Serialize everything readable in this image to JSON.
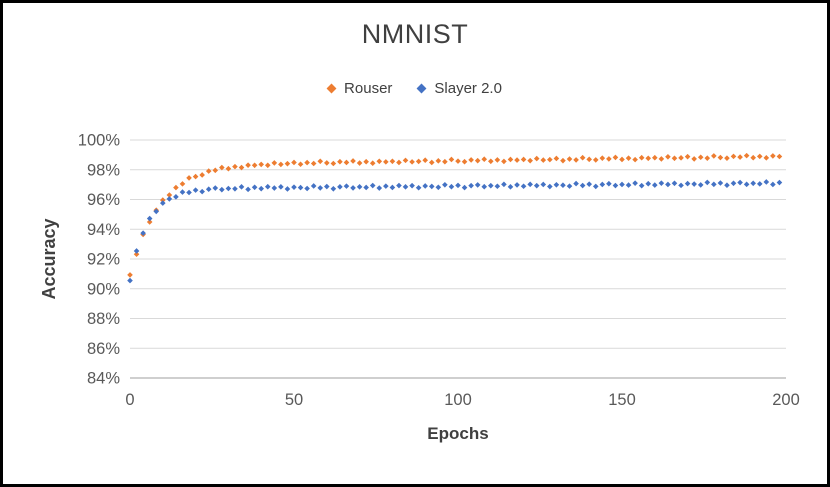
{
  "chart_data": {
    "type": "scatter",
    "title": "NMNIST",
    "xlabel": "Epochs",
    "ylabel": "Accuracy",
    "xlim": [
      0,
      200
    ],
    "ylim": [
      84,
      100
    ],
    "x_ticks": [
      0,
      50,
      100,
      150,
      200
    ],
    "y_ticks": [
      84,
      86,
      88,
      90,
      92,
      94,
      96,
      98,
      100
    ],
    "y_tick_labels": [
      "84%",
      "86%",
      "88%",
      "90%",
      "92%",
      "94%",
      "96%",
      "98%",
      "100%"
    ],
    "grid": "horizontal-only",
    "legend_position": "top-center",
    "marker": "diamond",
    "colors": {
      "gridline": "#D9D9D9",
      "axis_line": "#BFBFBF",
      "tick_text": "#595959",
      "title_text": "#404040",
      "series_rouser": "#ED7D31",
      "series_slayer": "#4472C4",
      "frame_border": "#000000",
      "background": "#FFFFFF"
    },
    "x": [
      0,
      2,
      4,
      6,
      8,
      10,
      12,
      14,
      16,
      18,
      20,
      22,
      24,
      26,
      28,
      30,
      32,
      34,
      36,
      38,
      40,
      42,
      44,
      46,
      48,
      50,
      52,
      54,
      56,
      58,
      60,
      62,
      64,
      66,
      68,
      70,
      72,
      74,
      76,
      78,
      80,
      82,
      84,
      86,
      88,
      90,
      92,
      94,
      96,
      98,
      100,
      102,
      104,
      106,
      108,
      110,
      112,
      114,
      116,
      118,
      120,
      122,
      124,
      126,
      128,
      130,
      132,
      134,
      136,
      138,
      140,
      142,
      144,
      146,
      148,
      150,
      152,
      154,
      156,
      158,
      160,
      162,
      164,
      166,
      168,
      170,
      172,
      174,
      176,
      178,
      180,
      182,
      184,
      186,
      188,
      190,
      192,
      194,
      196,
      198
    ],
    "series": [
      {
        "name": "Rouser",
        "color": "#ED7D31",
        "values": [
          90.93,
          92.32,
          93.65,
          94.49,
          95.28,
          95.96,
          96.3,
          96.8,
          97.05,
          97.45,
          97.54,
          97.65,
          97.91,
          97.96,
          98.15,
          98.07,
          98.21,
          98.15,
          98.31,
          98.3,
          98.36,
          98.3,
          98.46,
          98.36,
          98.41,
          98.49,
          98.37,
          98.48,
          98.42,
          98.57,
          98.46,
          98.42,
          98.54,
          98.49,
          98.59,
          98.45,
          98.54,
          98.44,
          98.57,
          98.53,
          98.57,
          98.49,
          98.63,
          98.53,
          98.56,
          98.64,
          98.49,
          98.6,
          98.54,
          98.69,
          98.58,
          98.54,
          98.66,
          98.61,
          98.71,
          98.57,
          98.66,
          98.56,
          98.69,
          98.65,
          98.69,
          98.61,
          98.75,
          98.65,
          98.68,
          98.76,
          98.61,
          98.72,
          98.66,
          98.81,
          98.7,
          98.66,
          98.78,
          98.73,
          98.83,
          98.69,
          98.78,
          98.68,
          98.81,
          98.77,
          98.81,
          98.73,
          98.87,
          98.77,
          98.8,
          98.88,
          98.73,
          98.84,
          98.78,
          98.93,
          98.82,
          98.78,
          98.9,
          98.85,
          98.95,
          98.81,
          98.9,
          98.8,
          98.93,
          98.89
        ]
      },
      {
        "name": "Slayer 2.0",
        "color": "#4472C4",
        "values": [
          90.55,
          92.54,
          93.74,
          94.72,
          95.2,
          95.76,
          96.04,
          96.18,
          96.5,
          96.47,
          96.63,
          96.53,
          96.69,
          96.77,
          96.66,
          96.74,
          96.72,
          96.85,
          96.68,
          96.82,
          96.73,
          96.86,
          96.77,
          96.85,
          96.71,
          96.83,
          96.8,
          96.74,
          96.91,
          96.78,
          96.87,
          96.72,
          96.85,
          96.9,
          96.78,
          96.85,
          96.81,
          96.94,
          96.77,
          96.9,
          96.81,
          96.94,
          96.85,
          96.93,
          96.79,
          96.91,
          96.88,
          96.82,
          96.99,
          96.86,
          96.95,
          96.8,
          96.93,
          96.98,
          96.86,
          96.93,
          96.89,
          97.02,
          96.85,
          96.98,
          96.89,
          97.02,
          96.93,
          97.01,
          96.87,
          96.99,
          96.96,
          96.9,
          97.07,
          96.94,
          97.03,
          96.88,
          97.01,
          97.06,
          96.94,
          97.01,
          96.97,
          97.1,
          96.93,
          97.06,
          96.97,
          97.1,
          97.01,
          97.09,
          96.95,
          97.07,
          97.04,
          96.98,
          97.15,
          97.02,
          97.11,
          96.96,
          97.09,
          97.14,
          97.02,
          97.09,
          97.05,
          97.18,
          97.01,
          97.14
        ]
      }
    ]
  }
}
